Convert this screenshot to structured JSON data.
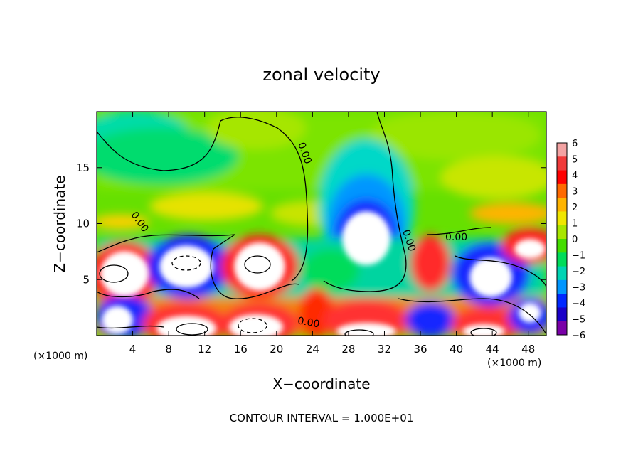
{
  "chart_data": {
    "type": "heatmap",
    "title": "zonal velocity",
    "xlabel": "X−coordinate",
    "ylabel": "Z−coordinate",
    "x_unit_left": "(×1000 m)",
    "x_unit_right": "(×1000 m)",
    "xlim": [
      0,
      50
    ],
    "ylim": [
      0,
      20
    ],
    "x_ticks": [
      4,
      8,
      12,
      16,
      20,
      24,
      28,
      32,
      36,
      40,
      44,
      48
    ],
    "y_ticks": [
      5,
      10,
      15
    ],
    "colorbar": {
      "ticks": [
        "6",
        "5",
        "4",
        "3",
        "2",
        "1",
        "0",
        "−1",
        "−2",
        "−3",
        "−4",
        "−5",
        "−6"
      ],
      "colors": [
        "#f3a3a3",
        "#f03a3a",
        "#ff0000",
        "#ff6a00",
        "#ffb400",
        "#f0e600",
        "#a8e600",
        "#44dd00",
        "#00dc5a",
        "#00d4b4",
        "#0096ff",
        "#0028ff",
        "#1a00c8",
        "#7a00a8"
      ]
    },
    "contour_labels": [
      {
        "text": "0.00",
        "x": 22.8,
        "y": 16.2,
        "angle": 70
      },
      {
        "text": "0.00",
        "x": 4.5,
        "y": 10.0,
        "angle": 55
      },
      {
        "text": "0.00",
        "x": 34.4,
        "y": 8.4,
        "angle": 72
      },
      {
        "text": "0.00",
        "x": 40.0,
        "y": 8.5,
        "angle": 0
      },
      {
        "text": "0.00",
        "x": 23.5,
        "y": 0.9,
        "angle": 10
      }
    ],
    "footer": "CONTOUR INTERVAL =  1.000E+01"
  }
}
